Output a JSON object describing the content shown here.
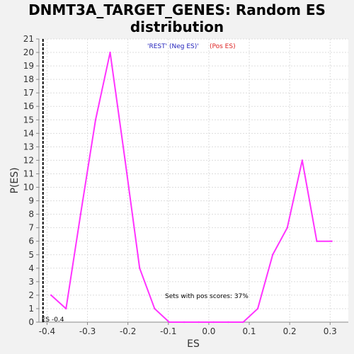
{
  "chart_data": {
    "type": "line",
    "title_line1": "DNMT3A_TARGET_GENES: Random ES",
    "title_line2": "distribution",
    "xlabel": "ES",
    "ylabel": "P(ES)",
    "xlim": [
      -0.42,
      0.345
    ],
    "ylim": [
      0,
      21
    ],
    "grid": true,
    "x_ticks": [
      -0.4,
      -0.3,
      -0.2,
      -0.1,
      0.0,
      0.1,
      0.2,
      0.3
    ],
    "x_tick_labels": [
      "-0.4",
      "-0.3",
      "-0.2",
      "-0.1",
      "0.0",
      "0.1",
      "0.2",
      "0.3"
    ],
    "y_ticks": [
      0,
      1,
      2,
      3,
      4,
      5,
      6,
      7,
      8,
      9,
      10,
      11,
      12,
      13,
      14,
      15,
      16,
      17,
      18,
      19,
      20,
      21
    ],
    "series": [
      {
        "color": "#ff33ff",
        "x": [
          -0.39,
          -0.353,
          -0.317,
          -0.28,
          -0.244,
          -0.207,
          -0.171,
          -0.134,
          -0.098,
          -0.061,
          -0.025,
          0.012,
          0.048,
          0.085,
          0.121,
          0.158,
          0.194,
          0.231,
          0.267,
          0.304
        ],
        "y": [
          2,
          1,
          8,
          15,
          20,
          12,
          4,
          1,
          0,
          0,
          0,
          0,
          0,
          0,
          1,
          5,
          7,
          12,
          6,
          6
        ]
      }
    ],
    "legend": {
      "placement": "top-center",
      "neg_label": "'REST' (Neg ES)'",
      "neg_color": "#2222bb",
      "pos_label": "(Pos ES)",
      "pos_color": "#dd2222"
    },
    "es_marker": {
      "x": -0.41,
      "label": "ES -0.4"
    },
    "annotation": "Sets with pos scores: 37%"
  }
}
